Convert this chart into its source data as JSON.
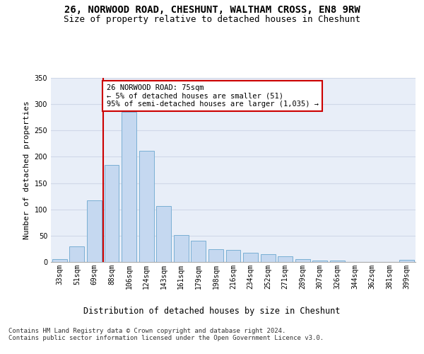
{
  "title1": "26, NORWOOD ROAD, CHESHUNT, WALTHAM CROSS, EN8 9RW",
  "title2": "Size of property relative to detached houses in Cheshunt",
  "xlabel": "Distribution of detached houses by size in Cheshunt",
  "ylabel": "Number of detached properties",
  "bar_color": "#c5d8f0",
  "bar_edge_color": "#7aafd4",
  "categories": [
    "33sqm",
    "51sqm",
    "69sqm",
    "88sqm",
    "106sqm",
    "124sqm",
    "143sqm",
    "161sqm",
    "179sqm",
    "198sqm",
    "216sqm",
    "234sqm",
    "252sqm",
    "271sqm",
    "289sqm",
    "307sqm",
    "326sqm",
    "344sqm",
    "362sqm",
    "381sqm",
    "399sqm"
  ],
  "values": [
    5,
    30,
    117,
    184,
    285,
    212,
    106,
    51,
    40,
    24,
    23,
    18,
    15,
    11,
    5,
    3,
    3,
    0,
    0,
    0,
    4
  ],
  "vline_x": 2.5,
  "vline_color": "#cc0000",
  "annotation_text": "26 NORWOOD ROAD: 75sqm\n← 5% of detached houses are smaller (51)\n95% of semi-detached houses are larger (1,035) →",
  "annotation_box_color": "#ffffff",
  "annotation_box_edge": "#cc0000",
  "ylim": [
    0,
    350
  ],
  "yticks": [
    0,
    50,
    100,
    150,
    200,
    250,
    300,
    350
  ],
  "grid_color": "#d0d8e8",
  "bg_color": "#e8eef8",
  "footnote": "Contains HM Land Registry data © Crown copyright and database right 2024.\nContains public sector information licensed under the Open Government Licence v3.0.",
  "title1_fontsize": 10,
  "title2_fontsize": 9,
  "xlabel_fontsize": 8.5,
  "ylabel_fontsize": 8,
  "annotation_fontsize": 7.5,
  "tick_fontsize": 7,
  "footnote_fontsize": 6.5
}
